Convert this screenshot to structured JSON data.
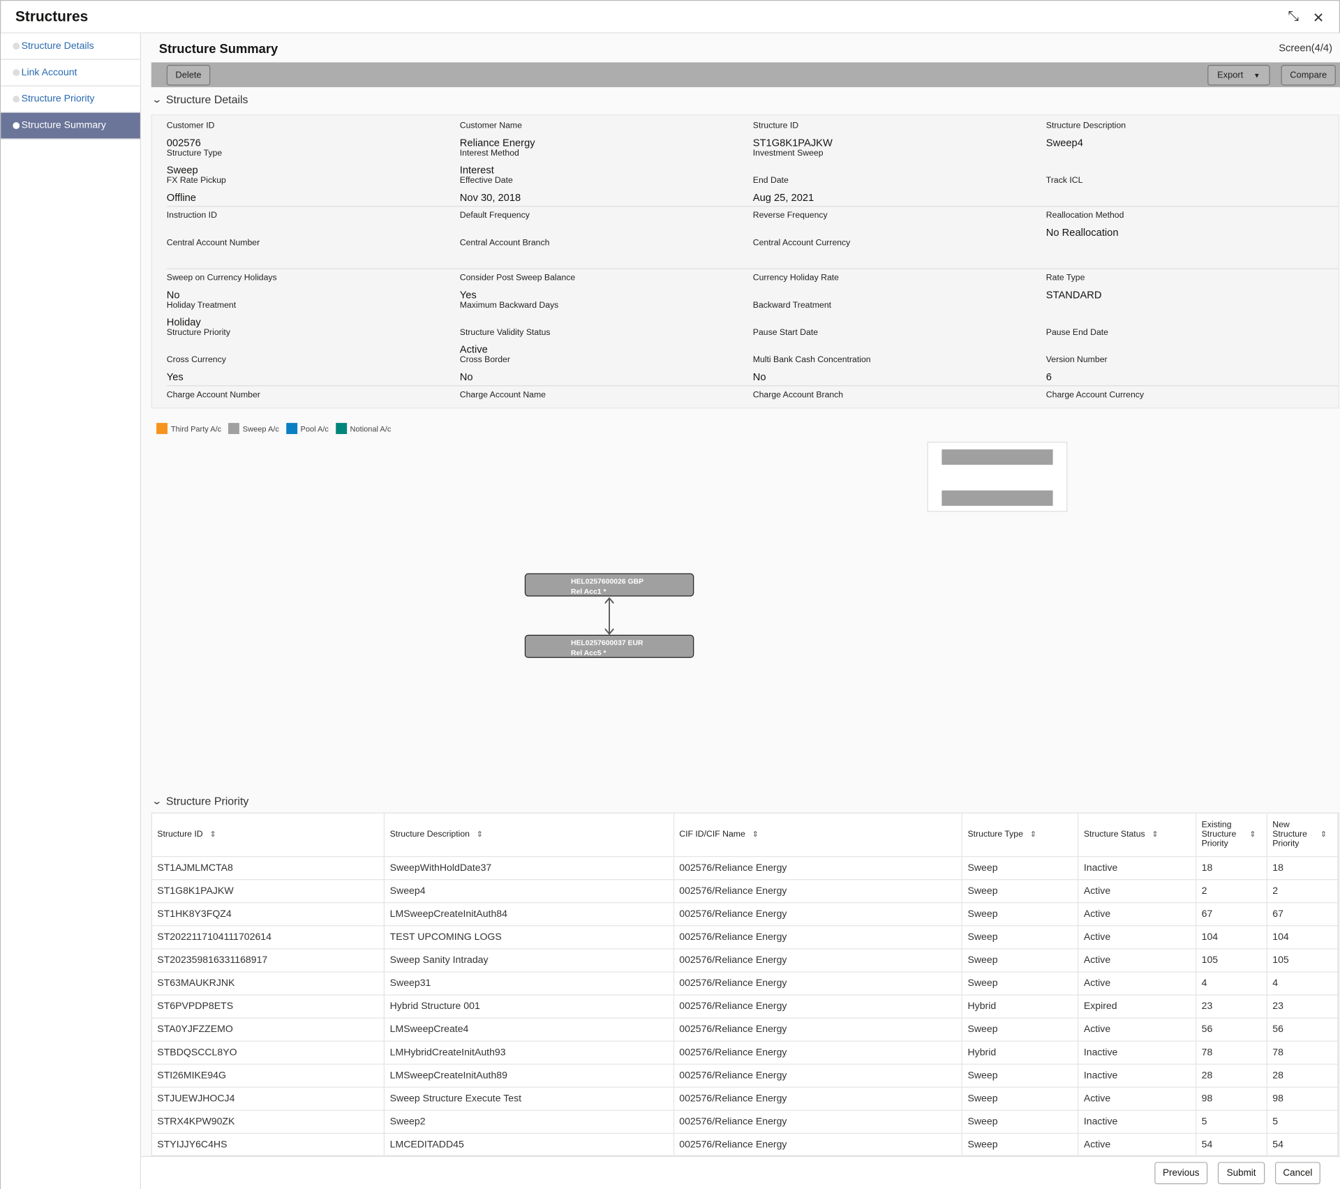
{
  "app": {
    "title": "Structures",
    "icons": [
      "collapse-icon",
      "close-icon"
    ]
  },
  "sidebar": {
    "items": [
      {
        "label": "Structure Details"
      },
      {
        "label": "Link Account"
      },
      {
        "label": "Structure Priority"
      },
      {
        "label": "Structure Summary",
        "active": true
      }
    ]
  },
  "page": {
    "title": "Structure Summary",
    "screen": "Screen(4/4)"
  },
  "toolbar": {
    "delete": "Delete",
    "export": "Export",
    "compare": "Compare"
  },
  "details": {
    "section": "Structure Details",
    "groups": [
      [
        [
          "Customer ID",
          "002576"
        ],
        [
          "Customer Name",
          "Reliance Energy"
        ],
        [
          "Structure ID",
          "ST1G8K1PAJKW"
        ],
        [
          "Structure Description",
          "Sweep4"
        ],
        [
          "Structure Type",
          "Sweep"
        ],
        [
          "Interest Method",
          "Interest"
        ],
        [
          "Investment Sweep",
          ""
        ],
        [
          "",
          ""
        ],
        [
          "FX Rate Pickup",
          "Offline"
        ],
        [
          "Effective Date",
          "Nov 30, 2018"
        ],
        [
          "End Date",
          "Aug 25, 2021"
        ],
        [
          "Track ICL",
          ""
        ]
      ],
      [
        [
          "Instruction ID",
          ""
        ],
        [
          "Default Frequency",
          ""
        ],
        [
          "Reverse Frequency",
          ""
        ],
        [
          "Reallocation Method",
          "No Reallocation"
        ],
        [
          "Central Account Number",
          ""
        ],
        [
          "Central Account Branch",
          ""
        ],
        [
          "Central Account Currency",
          ""
        ],
        [
          "",
          ""
        ]
      ],
      [
        [
          "Sweep on Currency Holidays",
          "No"
        ],
        [
          "Consider Post Sweep Balance",
          "Yes"
        ],
        [
          "Currency Holiday Rate",
          ""
        ],
        [
          "Rate Type",
          "STANDARD"
        ],
        [
          "Holiday Treatment",
          "Holiday"
        ],
        [
          "Maximum Backward Days",
          ""
        ],
        [
          "Backward Treatment",
          ""
        ],
        [
          "",
          ""
        ],
        [
          "Structure Priority",
          ""
        ],
        [
          "Structure Validity Status",
          "Active"
        ],
        [
          "Pause Start Date",
          ""
        ],
        [
          "Pause End Date",
          ""
        ],
        [
          "Cross Currency",
          "Yes"
        ],
        [
          "Cross Border",
          "No"
        ],
        [
          "Multi Bank Cash Concentration",
          "No"
        ],
        [
          "Version Number",
          "6"
        ]
      ],
      [
        [
          "Charge Account Number",
          ""
        ],
        [
          "Charge Account Name",
          ""
        ],
        [
          "Charge Account Branch",
          ""
        ],
        [
          "Charge Account Currency",
          ""
        ]
      ]
    ]
  },
  "legend": [
    {
      "label": "Third Party A/c",
      "color": "#f7941d"
    },
    {
      "label": "Sweep A/c",
      "color": "#a0a0a0"
    },
    {
      "label": "Pool A/c",
      "color": "#0a7fc2"
    },
    {
      "label": "Notional A/c",
      "color": "#00857a"
    }
  ],
  "diagram": {
    "nodes": [
      {
        "line1": "HEL0257600026 GBP",
        "line2": "Rel Acc1 *"
      },
      {
        "line1": "HEL0257600037 EUR",
        "line2": "Rel Acc5 *"
      }
    ]
  },
  "priority": {
    "section": "Structure Priority",
    "columns": [
      "Structure ID",
      "Structure Description",
      "CIF ID/CIF Name",
      "Structure Type",
      "Structure Status",
      "Existing Structure Priority",
      "New Structure Priority"
    ],
    "rows": [
      [
        "ST1AJMLMCTA8",
        "SweepWithHoldDate37",
        "002576/Reliance Energy",
        "Sweep",
        "Inactive",
        "18",
        "18"
      ],
      [
        "ST1G8K1PAJKW",
        "Sweep4",
        "002576/Reliance Energy",
        "Sweep",
        "Active",
        "2",
        "2"
      ],
      [
        "ST1HK8Y3FQZ4",
        "LMSweepCreateInitAuth84",
        "002576/Reliance Energy",
        "Sweep",
        "Active",
        "67",
        "67"
      ],
      [
        "ST2022117104111702614",
        "TEST UPCOMING LOGS",
        "002576/Reliance Energy",
        "Sweep",
        "Active",
        "104",
        "104"
      ],
      [
        "ST202359816331168917",
        "Sweep Sanity Intraday",
        "002576/Reliance Energy",
        "Sweep",
        "Active",
        "105",
        "105"
      ],
      [
        "ST63MAUKRJNK",
        "Sweep31",
        "002576/Reliance Energy",
        "Sweep",
        "Active",
        "4",
        "4"
      ],
      [
        "ST6PVPDP8ETS",
        "Hybrid Structure 001",
        "002576/Reliance Energy",
        "Hybrid",
        "Expired",
        "23",
        "23"
      ],
      [
        "STA0YJFZZEMO",
        "LMSweepCreate4",
        "002576/Reliance Energy",
        "Sweep",
        "Active",
        "56",
        "56"
      ],
      [
        "STBDQSCCL8YO",
        "LMHybridCreateInitAuth93",
        "002576/Reliance Energy",
        "Hybrid",
        "Inactive",
        "78",
        "78"
      ],
      [
        "STI26MIKE94G",
        "LMSweepCreateInitAuth89",
        "002576/Reliance Energy",
        "Sweep",
        "Inactive",
        "28",
        "28"
      ],
      [
        "STJUEWJHOCJ4",
        "Sweep Structure Execute Test",
        "002576/Reliance Energy",
        "Sweep",
        "Active",
        "98",
        "98"
      ],
      [
        "STRX4KPW90ZK",
        "Sweep2",
        "002576/Reliance Energy",
        "Sweep",
        "Inactive",
        "5",
        "5"
      ],
      [
        "STYIJJY6C4HS",
        "LMCEDITADD45",
        "002576/Reliance Energy",
        "Sweep",
        "Active",
        "54",
        "54"
      ]
    ]
  },
  "footer": {
    "previous": "Previous",
    "submit": "Submit",
    "cancel": "Cancel"
  }
}
